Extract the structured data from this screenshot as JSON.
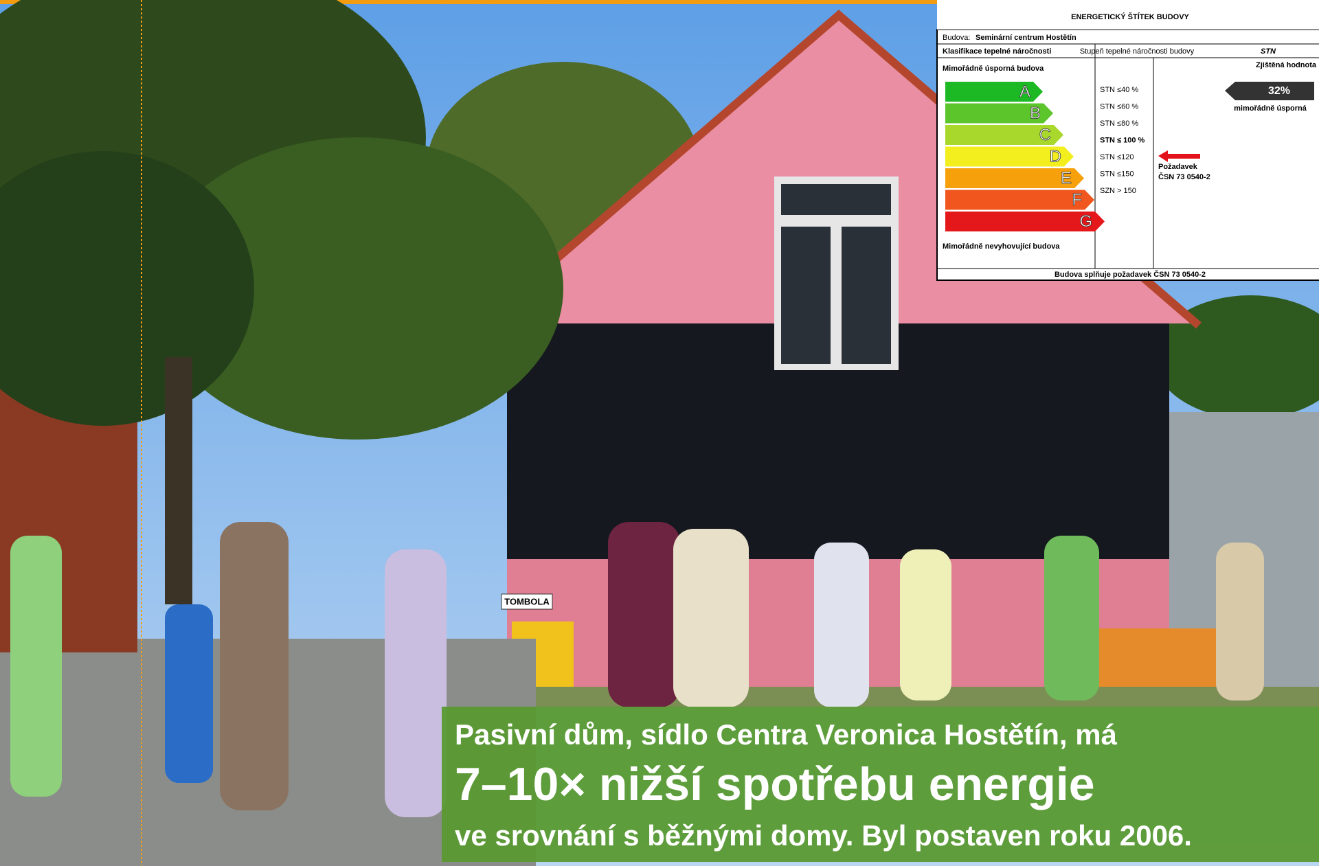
{
  "label": {
    "title": "ENERGETICKÝ ŠTÍTEK BUDOVY",
    "building_label": "Budova:",
    "building_name": "Seminární centrum Hostětín",
    "classification": "Klasifikace tepelné náročnosti",
    "grade_header": "Stupeň tepelné náročnosti budovy",
    "grade_header_abbr": "STN",
    "measured_header": "Zjištěná hodnota",
    "top_text": "Mimořádně úsporná budova",
    "bottom_text": "Mimořádně nevyhovující budova",
    "classes": [
      {
        "letter": "A",
        "threshold": "STN ≤40 %"
      },
      {
        "letter": "B",
        "threshold": "STN ≤60 %"
      },
      {
        "letter": "C",
        "threshold": "STN ≤80 %"
      },
      {
        "letter": "D",
        "threshold": "STN ≤ 100 %"
      },
      {
        "letter": "E",
        "threshold": "STN ≤120"
      },
      {
        "letter": "F",
        "threshold": "STN ≤150"
      },
      {
        "letter": "G",
        "threshold": "SZN > 150"
      }
    ],
    "measured_value": "32%",
    "measured_text": "mimořádně úsporná",
    "requirement_1": "Požadavek",
    "requirement_2": "ČSN 73 0540-2",
    "footer": "Budova splňuje požadavek ČSN 73 0540-2"
  },
  "sign": "TOMBOLA",
  "caption": {
    "line1": "Pasivní dům, sídlo Centra Veronica Hostětín, má",
    "line2": "7–10× nižší spotřebu energie",
    "line3": "ve srovnání s běžnými domy. Byl postaven roku 2006."
  }
}
